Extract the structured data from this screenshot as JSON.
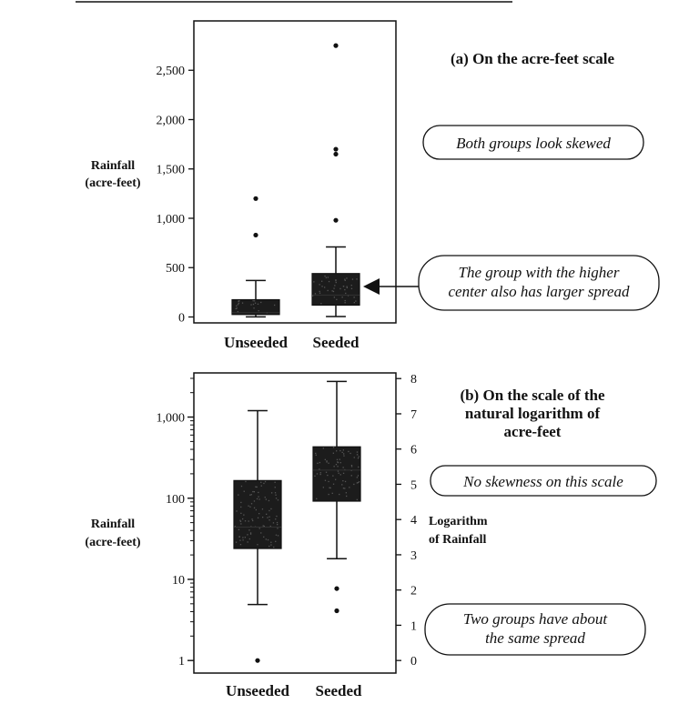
{
  "chart_data": [
    {
      "type": "boxplot",
      "title": "(a) On the acre-feet scale",
      "ylabel": [
        "Rainfall",
        "(acre-feet)"
      ],
      "ylim": [
        -60,
        3000
      ],
      "y_ticks": [
        0,
        500,
        1000,
        1500,
        2000,
        2500
      ],
      "y_tick_labels": [
        "0",
        "500",
        "1,000",
        "1,500",
        "2,000",
        "2,500"
      ],
      "categories": [
        "Unseeded",
        "Seeded"
      ],
      "boxes": [
        {
          "name": "Unseeded",
          "whisker_low": 1,
          "q1": 25,
          "median": 44,
          "q3": 175,
          "whisker_high": 370,
          "outliers": [
            830,
            1200
          ]
        },
        {
          "name": "Seeded",
          "whisker_low": 4,
          "q1": 120,
          "median": 222,
          "q3": 440,
          "whisker_high": 710,
          "outliers": [
            980,
            1650,
            1700,
            2750
          ]
        }
      ],
      "callouts": [
        {
          "text": [
            "Both groups look skewed"
          ]
        },
        {
          "text": [
            "The group with the higher",
            "center also has larger spread"
          ]
        }
      ]
    },
    {
      "type": "boxplot",
      "title": [
        "(b) On the scale of the",
        "natural logarithm of",
        "acre-feet"
      ],
      "ylabel": [
        "Rainfall",
        "(acre-feet)"
      ],
      "y_scale": "log",
      "ylim": [
        0.7,
        3500
      ],
      "y_ticks": [
        1,
        10,
        100,
        1000
      ],
      "y_tick_labels": [
        "1",
        "10",
        "100",
        "1,000"
      ],
      "y2label": [
        "Logarithm",
        "of Rainfall"
      ],
      "y2_ticks": [
        0,
        1,
        2,
        3,
        4,
        5,
        6,
        7,
        8
      ],
      "y2_tick_labels": [
        "0",
        "1",
        "2",
        "3",
        "4",
        "5",
        "6",
        "7",
        "8"
      ],
      "categories": [
        "Unseeded",
        "Seeded"
      ],
      "boxes": [
        {
          "name": "Unseeded",
          "whisker_low": 4.9,
          "q1": 24,
          "median": 44,
          "q3": 165,
          "whisker_high": 1200,
          "outliers": [
            1.0
          ]
        },
        {
          "name": "Seeded",
          "whisker_low": 18,
          "q1": 92,
          "median": 222,
          "q3": 430,
          "whisker_high": 2750,
          "outliers": [
            4.1,
            7.7
          ]
        }
      ],
      "callouts": [
        {
          "text": [
            "No skewness on this scale"
          ]
        },
        {
          "text": [
            "Two groups have about",
            "the same spread"
          ]
        }
      ]
    }
  ]
}
